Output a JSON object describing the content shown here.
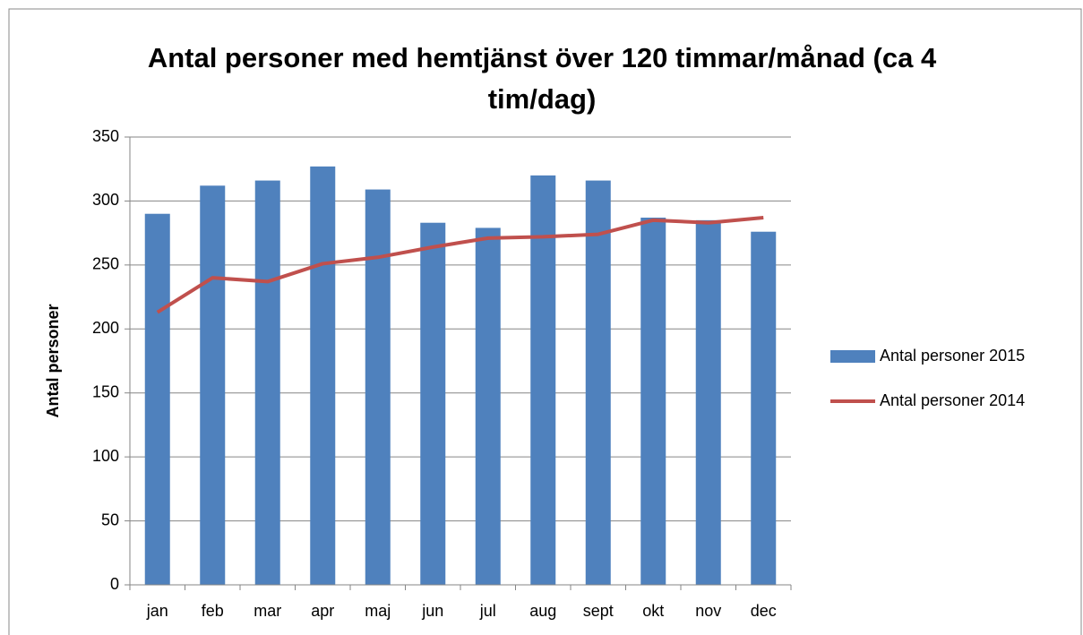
{
  "chart_data": {
    "type": "bar",
    "title": "Antal personer med hemtjänst över 120 timmar/månad (ca 4 tim/dag)",
    "y_label": "Antal personer",
    "categories": [
      "jan",
      "feb",
      "mar",
      "apr",
      "maj",
      "jun",
      "jul",
      "aug",
      "sept",
      "okt",
      "nov",
      "dec"
    ],
    "series": [
      {
        "name": "Antal personer 2015",
        "type": "bar",
        "color": "#4f81bd",
        "values": [
          290,
          312,
          316,
          327,
          309,
          283,
          279,
          320,
          316,
          287,
          285,
          276
        ]
      },
      {
        "name": "Antal personer 2014",
        "type": "line",
        "color": "#c0504d",
        "values": [
          213,
          240,
          237,
          251,
          256,
          264,
          271,
          272,
          274,
          285,
          283,
          287
        ]
      }
    ],
    "ylim": [
      0,
      350
    ],
    "yticks": [
      0,
      50,
      100,
      150,
      200,
      250,
      300,
      350
    ],
    "grid": true,
    "legend": "right"
  }
}
